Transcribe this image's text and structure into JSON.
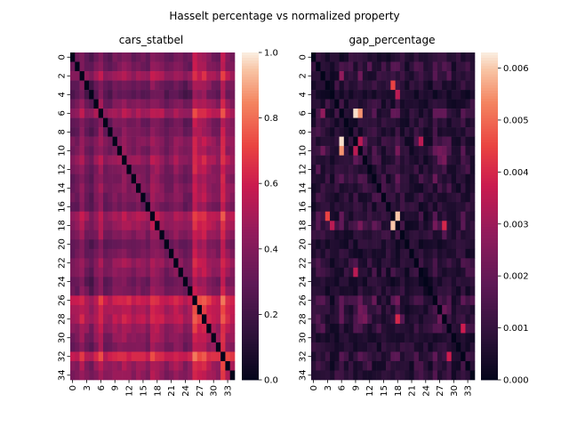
{
  "figure": {
    "suptitle": "Hasselt percentage vs normalized property"
  },
  "chart_data": [
    {
      "type": "heatmap",
      "title": "cars_statbel",
      "n": 35,
      "x_tick_labels": [
        "0",
        "3",
        "6",
        "9",
        "12",
        "15",
        "18",
        "21",
        "24",
        "27",
        "30",
        "33"
      ],
      "y_tick_labels": [
        "0",
        "2",
        "4",
        "6",
        "8",
        "10",
        "12",
        "14",
        "16",
        "18",
        "20",
        "22",
        "24",
        "26",
        "28",
        "30",
        "32",
        "34"
      ],
      "colorbar": {
        "min": 0.0,
        "max": 1.0,
        "ticks": [
          "0.0",
          "0.2",
          "0.4",
          "0.6",
          "0.8",
          "1.0"
        ]
      },
      "colormap": "rocket",
      "row_levels": [
        0.3,
        0.34,
        0.55,
        0.3,
        0.2,
        0.38,
        0.62,
        0.32,
        0.33,
        0.45,
        0.4,
        0.55,
        0.42,
        0.37,
        0.4,
        0.38,
        0.3,
        0.63,
        0.55,
        0.45,
        0.28,
        0.36,
        0.5,
        0.43,
        0.3,
        0.35,
        0.82,
        0.68,
        0.72,
        0.55,
        0.48,
        0.4,
        0.85,
        0.55,
        0.5
      ],
      "col_levels": [
        0.28,
        0.31,
        0.48,
        0.3,
        0.18,
        0.36,
        0.56,
        0.3,
        0.3,
        0.42,
        0.4,
        0.5,
        0.42,
        0.36,
        0.42,
        0.38,
        0.3,
        0.55,
        0.5,
        0.44,
        0.28,
        0.34,
        0.46,
        0.4,
        0.28,
        0.32,
        0.8,
        0.66,
        0.7,
        0.52,
        0.46,
        0.4,
        0.82,
        0.52,
        0.46
      ],
      "note_values": "values estimated; matrix shows normalized absolute difference of a property, zero on the diagonal"
    },
    {
      "type": "heatmap",
      "title": "gap_percentage",
      "n": 35,
      "x_tick_labels": [
        "0",
        "3",
        "6",
        "9",
        "12",
        "15",
        "18",
        "21",
        "24",
        "27",
        "30",
        "33"
      ],
      "y_tick_labels": [
        "0",
        "2",
        "4",
        "6",
        "8",
        "10",
        "12",
        "14",
        "16",
        "18",
        "20",
        "22",
        "24",
        "26",
        "28",
        "30",
        "32",
        "34"
      ],
      "colorbar": {
        "min": 0.0,
        "max": 0.0063,
        "ticks": [
          "0.000",
          "0.001",
          "0.002",
          "0.003",
          "0.004",
          "0.005",
          "0.006"
        ]
      },
      "colormap": "rocket",
      "row_levels": [
        0.0008,
        0.0012,
        0.002,
        0.001,
        0.0006,
        0.0011,
        0.0022,
        0.0009,
        0.001,
        0.0015,
        0.0018,
        0.0016,
        0.0012,
        0.0014,
        0.0011,
        0.001,
        0.0009,
        0.002,
        0.0018,
        0.0012,
        0.0007,
        0.0008,
        0.0012,
        0.001,
        0.0007,
        0.0008,
        0.0016,
        0.0017,
        0.0016,
        0.0012,
        0.0006,
        0.0008,
        0.0014,
        0.001,
        0.0012
      ],
      "hot_cells": [
        [
          6,
          9,
          0.0062
        ],
        [
          6,
          10,
          0.0055
        ],
        [
          17,
          18,
          0.006
        ],
        [
          17,
          17,
          0.0042
        ],
        [
          18,
          18,
          0.004
        ],
        [
          17,
          3,
          0.0045
        ],
        [
          23,
          9,
          0.0035
        ],
        [
          28,
          18,
          0.004
        ],
        [
          32,
          29,
          0.0038
        ],
        [
          10,
          9,
          0.0035
        ],
        [
          4,
          18,
          0.0035
        ]
      ]
    }
  ]
}
